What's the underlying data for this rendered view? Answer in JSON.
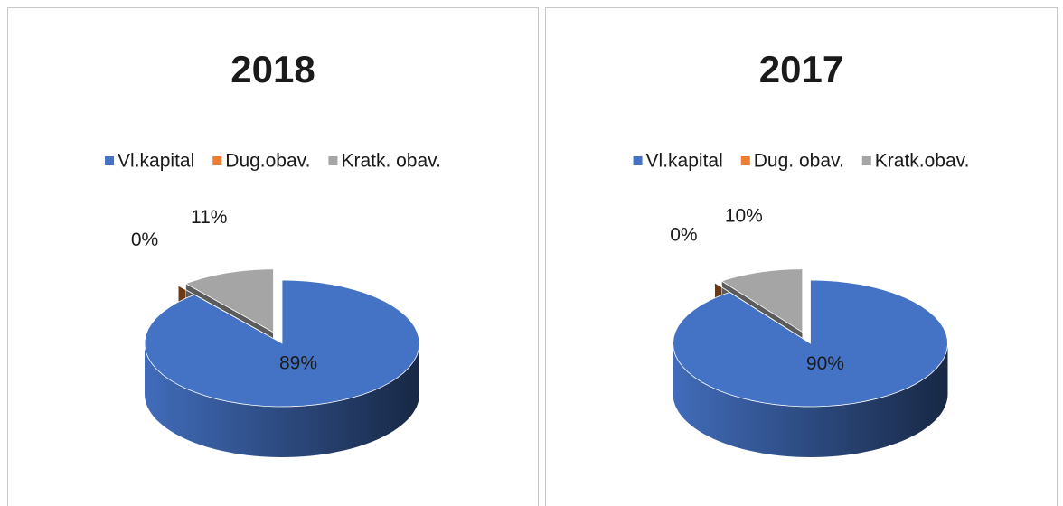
{
  "chart_data": [
    {
      "type": "pie3d",
      "title": "2018",
      "categories": [
        "Vl.kapital",
        "Dug.obav.",
        "Kratk. obav."
      ],
      "values": [
        89,
        0,
        11
      ],
      "value_labels": [
        "89%",
        "0%",
        "11%"
      ],
      "colors": [
        "#4472c4",
        "#ed7d31",
        "#a5a5a5"
      ]
    },
    {
      "type": "pie3d",
      "title": "2017",
      "categories": [
        "Vl.kapital",
        "Dug. obav.",
        "Kratk.obav."
      ],
      "values": [
        90,
        0,
        10
      ],
      "value_labels": [
        "90%",
        "0%",
        "10%"
      ],
      "colors": [
        "#4472c4",
        "#ed7d31",
        "#a5a5a5"
      ]
    }
  ]
}
